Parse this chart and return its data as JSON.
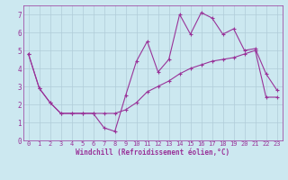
{
  "title": "",
  "xlabel": "Windchill (Refroidissement éolien,°C)",
  "ylabel": "",
  "bg_color": "#cce8f0",
  "line_color": "#993399",
  "x": [
    0,
    1,
    2,
    3,
    4,
    5,
    6,
    7,
    8,
    9,
    10,
    11,
    12,
    13,
    14,
    15,
    16,
    17,
    18,
    19,
    20,
    21,
    22,
    23
  ],
  "line1": [
    4.8,
    2.9,
    2.1,
    1.5,
    1.5,
    1.5,
    1.5,
    0.7,
    0.5,
    2.5,
    4.4,
    5.5,
    3.8,
    4.5,
    7.0,
    5.9,
    7.1,
    6.8,
    5.9,
    6.2,
    5.0,
    5.1,
    3.7,
    2.8
  ],
  "line2": [
    4.8,
    2.9,
    2.1,
    1.5,
    1.5,
    1.5,
    1.5,
    1.5,
    1.5,
    1.7,
    2.1,
    2.7,
    3.0,
    3.3,
    3.7,
    4.0,
    4.2,
    4.4,
    4.5,
    4.6,
    4.8,
    5.0,
    2.4,
    2.4
  ],
  "xlim": [
    -0.5,
    23.5
  ],
  "ylim": [
    0,
    7.5
  ],
  "yticks": [
    0,
    1,
    2,
    3,
    4,
    5,
    6,
    7
  ],
  "xticks": [
    0,
    1,
    2,
    3,
    4,
    5,
    6,
    7,
    8,
    9,
    10,
    11,
    12,
    13,
    14,
    15,
    16,
    17,
    18,
    19,
    20,
    21,
    22,
    23
  ],
  "grid_color": "#b0ccd8",
  "marker": "+",
  "tick_fontsize": 5.0,
  "xlabel_fontsize": 5.5,
  "linewidth": 0.8,
  "markersize": 3.5,
  "markeredgewidth": 0.8
}
